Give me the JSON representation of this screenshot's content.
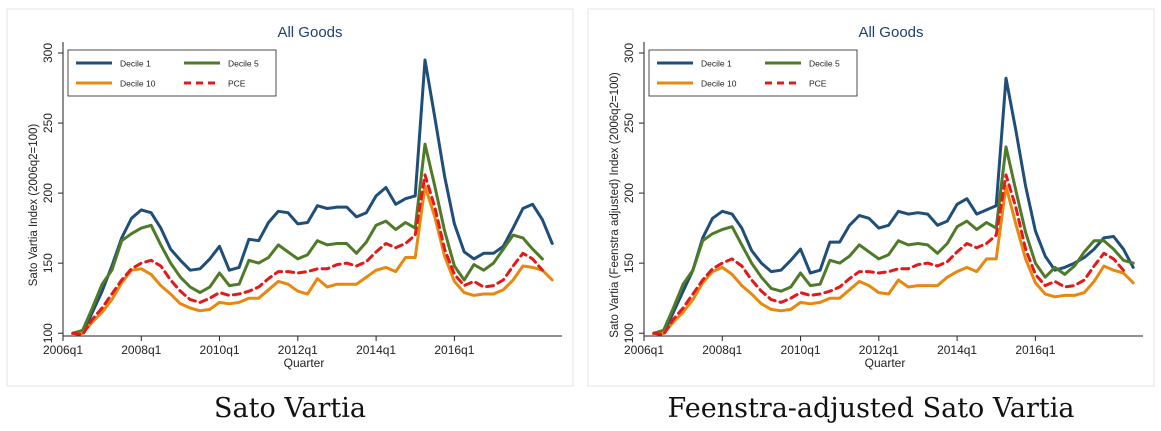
{
  "charts": [
    {
      "caption": "Sato Vartia",
      "title": "All Goods",
      "ylabel": "Sato Vartia Index (2006q2=100)",
      "xlabel": "Quarter"
    },
    {
      "caption": "Feenstra-adjusted Sato Vartia",
      "title": "All Goods",
      "ylabel": "Sato Vartia (Feenstra adjusted) Index (2006q2=100)",
      "xlabel": "Quarter"
    }
  ],
  "chart_data": [
    {
      "type": "line",
      "title": "All Goods",
      "xlabel": "Quarter",
      "ylabel": "Sato Vartia Index (2006q2=100)",
      "x_start": "2006q2",
      "x_ticks": [
        "2006q1",
        "2008q1",
        "2010q1",
        "2012q1",
        "2014q1",
        "2016q1"
      ],
      "y_ticks": [
        100,
        150,
        200,
        250,
        300
      ],
      "ylim": [
        98,
        305
      ],
      "grid": false,
      "legend_position": "top-left",
      "series": [
        {
          "name": "Decile 1",
          "color": "#1f4e79",
          "style": "solid",
          "values": [
            100,
            100,
            115,
            130,
            148,
            168,
            182,
            188,
            186,
            175,
            160,
            152,
            145,
            146,
            153,
            162,
            145,
            147,
            167,
            166,
            179,
            187,
            186,
            178,
            179,
            191,
            189,
            190,
            190,
            183,
            186,
            198,
            204,
            192,
            196,
            198,
            295,
            254,
            212,
            178,
            158,
            153,
            157,
            157,
            162,
            175,
            189,
            192,
            181,
            164
          ]
        },
        {
          "name": "Decile 5",
          "color": "#4f7a28",
          "style": "solid",
          "values": [
            100,
            102,
            118,
            135,
            145,
            166,
            171,
            175,
            177,
            163,
            150,
            140,
            133,
            129,
            133,
            143,
            134,
            135,
            152,
            150,
            154,
            163,
            158,
            153,
            156,
            166,
            163,
            164,
            164,
            157,
            165,
            177,
            180,
            174,
            179,
            175,
            235,
            205,
            173,
            148,
            138,
            149,
            145,
            150,
            160,
            170,
            168,
            160,
            153
          ]
        },
        {
          "name": "Decile 10",
          "color": "#e8880e",
          "style": "solid",
          "values": [
            99,
            100,
            108,
            115,
            124,
            136,
            145,
            146,
            142,
            134,
            128,
            121,
            118,
            116,
            117,
            122,
            121,
            122,
            125,
            125,
            131,
            137,
            135,
            130,
            128,
            139,
            133,
            135,
            135,
            135,
            140,
            145,
            147,
            144,
            154,
            154,
            205,
            183,
            155,
            137,
            129,
            127,
            128,
            128,
            131,
            138,
            148,
            147,
            145,
            138
          ]
        },
        {
          "name": "PCE",
          "color": "#e3191c",
          "style": "dashed",
          "values": [
            100,
            99,
            110,
            118,
            128,
            138,
            146,
            150,
            152,
            148,
            138,
            130,
            124,
            122,
            125,
            129,
            127,
            128,
            130,
            133,
            139,
            144,
            144,
            143,
            144,
            146,
            146,
            149,
            150,
            148,
            151,
            158,
            164,
            161,
            164,
            170,
            213,
            190,
            160,
            142,
            134,
            137,
            133,
            134,
            138,
            148,
            157,
            153,
            145
          ]
        }
      ]
    },
    {
      "type": "line",
      "title": "All Goods",
      "xlabel": "Quarter",
      "ylabel": "Sato Vartia (Feenstra adjusted) Index (2006q2=100)",
      "x_start": "2006q2",
      "x_ticks": [
        "2006q1",
        "2008q1",
        "2010q1",
        "2012q1",
        "2014q1",
        "2016q1"
      ],
      "y_ticks": [
        100,
        150,
        200,
        250,
        300
      ],
      "ylim": [
        98,
        305
      ],
      "grid": false,
      "legend_position": "top-left",
      "series": [
        {
          "name": "Decile 1",
          "color": "#1f4e79",
          "style": "solid",
          "values": [
            100,
            100,
            115,
            130,
            145,
            168,
            182,
            187,
            185,
            175,
            159,
            150,
            144,
            145,
            152,
            160,
            143,
            145,
            165,
            165,
            177,
            184,
            182,
            175,
            177,
            187,
            185,
            186,
            185,
            177,
            180,
            192,
            196,
            185,
            188,
            191,
            282,
            245,
            205,
            173,
            155,
            145,
            147,
            150,
            154,
            160,
            168,
            169,
            160,
            147
          ]
        },
        {
          "name": "Decile 5",
          "color": "#4f7a28",
          "style": "solid",
          "values": [
            100,
            102,
            118,
            135,
            145,
            166,
            171,
            174,
            176,
            163,
            150,
            140,
            132,
            130,
            133,
            143,
            134,
            135,
            152,
            150,
            155,
            163,
            158,
            153,
            156,
            166,
            163,
            164,
            163,
            157,
            164,
            176,
            180,
            174,
            179,
            175,
            233,
            202,
            172,
            150,
            140,
            147,
            142,
            148,
            158,
            166,
            166,
            160,
            152,
            150
          ]
        },
        {
          "name": "Decile 10",
          "color": "#e8880e",
          "style": "solid",
          "values": [
            99,
            100,
            108,
            115,
            124,
            136,
            144,
            147,
            142,
            134,
            128,
            121,
            117,
            116,
            117,
            122,
            121,
            122,
            125,
            125,
            131,
            137,
            134,
            129,
            128,
            138,
            133,
            134,
            134,
            134,
            140,
            144,
            147,
            144,
            153,
            153,
            205,
            178,
            153,
            136,
            128,
            126,
            127,
            127,
            129,
            137,
            148,
            145,
            143,
            136
          ]
        },
        {
          "name": "PCE",
          "color": "#e3191c",
          "style": "dashed",
          "values": [
            100,
            99,
            110,
            118,
            128,
            138,
            146,
            150,
            153,
            148,
            138,
            130,
            124,
            122,
            125,
            129,
            127,
            128,
            130,
            133,
            139,
            144,
            144,
            143,
            144,
            146,
            146,
            149,
            150,
            148,
            151,
            158,
            164,
            161,
            164,
            170,
            213,
            190,
            160,
            142,
            134,
            137,
            133,
            134,
            138,
            148,
            157,
            153,
            145
          ]
        }
      ]
    }
  ]
}
